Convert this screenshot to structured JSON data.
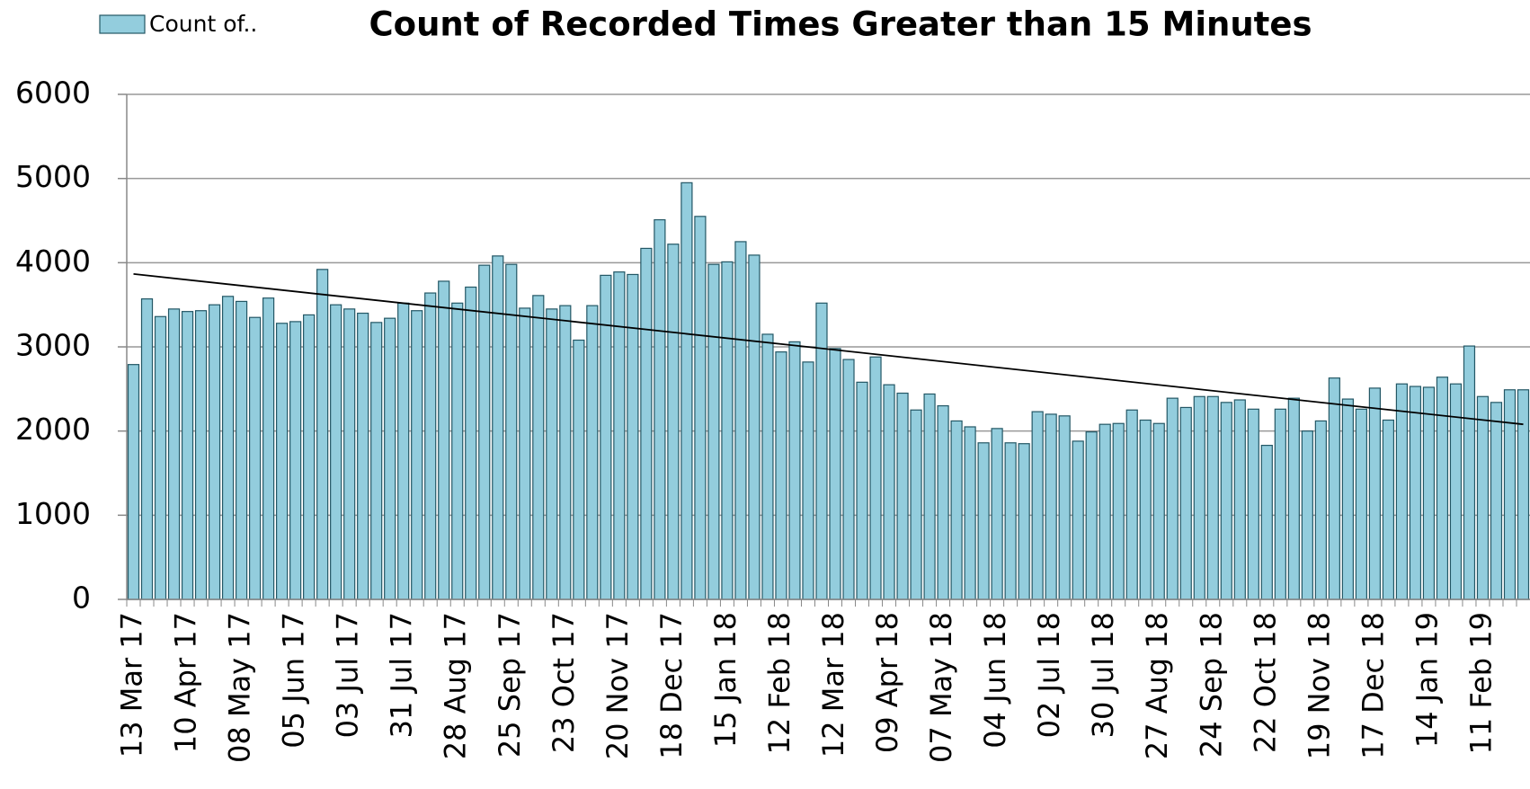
{
  "chart_data": {
    "type": "bar",
    "title": "Count of Recorded Times Greater than 15 Minutes",
    "categories": [
      "13 Mar 17",
      null,
      null,
      null,
      "10 Apr 17",
      null,
      null,
      null,
      "08 May 17",
      null,
      null,
      null,
      "05 Jun 17",
      null,
      null,
      null,
      "03 Jul 17",
      null,
      null,
      null,
      "31 Jul 17",
      null,
      null,
      null,
      "28 Aug 17",
      null,
      null,
      null,
      "25 Sep 17",
      null,
      null,
      null,
      "23 Oct 17",
      null,
      null,
      null,
      "20 Nov 17",
      null,
      null,
      null,
      "18 Dec 17",
      null,
      null,
      null,
      "15 Jan 18",
      null,
      null,
      null,
      "12 Feb 18",
      null,
      null,
      null,
      "12 Mar 18",
      null,
      null,
      null,
      "09 Apr 18",
      null,
      null,
      null,
      "07 May 18",
      null,
      null,
      null,
      "04 Jun 18",
      null,
      null,
      null,
      "02 Jul 18",
      null,
      null,
      null,
      "30 Jul 18",
      null,
      null,
      null,
      "27 Aug 18",
      null,
      null,
      null,
      "24 Sep 18",
      null,
      null,
      null,
      "22 Oct 18",
      null,
      null,
      null,
      "19 Nov 18",
      null,
      null,
      null,
      "17 Dec 18",
      null,
      null,
      null,
      "14 Jan 19",
      null,
      null,
      null,
      "11 Feb 19",
      null,
      null,
      null
    ],
    "series": [
      {
        "name": "Count of..",
        "color": "#93cddd",
        "values": [
          2790,
          3570,
          3360,
          3450,
          3420,
          3430,
          3500,
          3600,
          3540,
          3350,
          3580,
          3280,
          3300,
          3380,
          3920,
          3500,
          3450,
          3400,
          3290,
          3340,
          3520,
          3430,
          3640,
          3780,
          3520,
          3710,
          3970,
          4080,
          3980,
          3460,
          3610,
          3450,
          3490,
          3080,
          3490,
          3850,
          3890,
          3860,
          4170,
          4510,
          4220,
          4950,
          4550,
          3980,
          4010,
          4250,
          4090,
          3150,
          2940,
          3060,
          2820,
          3520,
          2980,
          2850,
          2580,
          2880,
          2550,
          2450,
          2250,
          2440,
          2300,
          2120,
          2050,
          1860,
          2030,
          1860,
          1850,
          2230,
          2200,
          2180,
          1880,
          1990,
          2080,
          2090,
          2250,
          2130,
          2090,
          2390,
          2280,
          2410,
          2410,
          2340,
          2370,
          2260,
          1830,
          2260,
          2390,
          2000,
          2120,
          2630,
          2380,
          2260,
          2510,
          2130,
          2560,
          2530,
          2520,
          2640,
          2560,
          3010,
          2410,
          2340,
          2490,
          2490
        ]
      }
    ],
    "ylim": [
      0,
      6000
    ],
    "yticks": [
      0,
      1000,
      2000,
      3000,
      4000,
      5000,
      6000
    ],
    "grid": true,
    "trendline": "linear",
    "legend": "top-left"
  }
}
